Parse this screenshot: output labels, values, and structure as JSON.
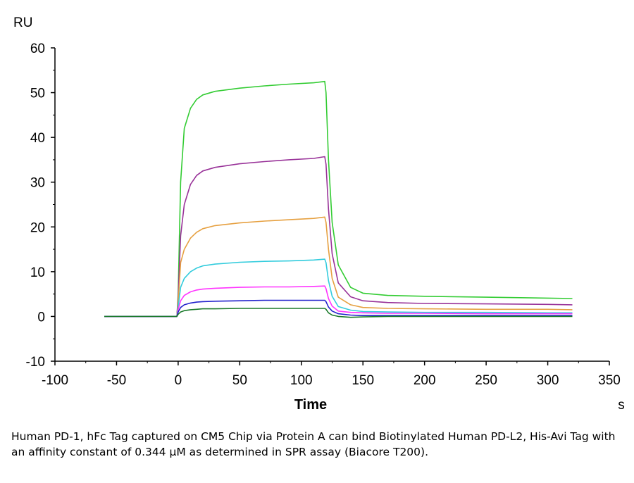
{
  "chart_data": {
    "type": "line",
    "ylabel_unit": "RU",
    "xlabel": "Time",
    "xlabel_unit": "s",
    "xlim": [
      -100,
      350
    ],
    "ylim": [
      -10,
      60
    ],
    "xticks": [
      -100,
      -50,
      0,
      50,
      100,
      150,
      200,
      250,
      300,
      350
    ],
    "yticks": [
      -10,
      0,
      10,
      20,
      30,
      40,
      50,
      60
    ],
    "grid": false,
    "legend": "none",
    "series": [
      {
        "color": "#33cc33",
        "x": [
          -60,
          -20,
          -1,
          0,
          2,
          5,
          10,
          15,
          20,
          30,
          50,
          70,
          90,
          110,
          119,
          120,
          122,
          125,
          130,
          140,
          150,
          170,
          200,
          250,
          300,
          320
        ],
        "y": [
          0,
          0,
          0,
          5,
          30,
          42,
          46.5,
          48.5,
          49.5,
          50.3,
          51,
          51.5,
          51.9,
          52.2,
          52.5,
          50,
          35,
          21,
          11.5,
          6.5,
          5.2,
          4.7,
          4.5,
          4.3,
          4.1,
          4
        ]
      },
      {
        "color": "#993399",
        "x": [
          -60,
          -1,
          0,
          2,
          5,
          10,
          15,
          20,
          30,
          50,
          70,
          90,
          110,
          119,
          120,
          122,
          125,
          130,
          140,
          150,
          170,
          200,
          250,
          300,
          320
        ],
        "y": [
          0,
          0,
          4,
          18,
          25,
          29.5,
          31.5,
          32.5,
          33.3,
          34.1,
          34.6,
          35,
          35.3,
          35.7,
          34,
          24,
          14,
          7.5,
          4.4,
          3.5,
          3.1,
          2.9,
          2.8,
          2.7,
          2.6
        ]
      },
      {
        "color": "#e6a040",
        "x": [
          -60,
          -1,
          0,
          2,
          5,
          10,
          15,
          20,
          30,
          50,
          70,
          90,
          110,
          119,
          120,
          122,
          125,
          130,
          140,
          150,
          170,
          200,
          250,
          300,
          320
        ],
        "y": [
          0,
          0,
          3,
          12,
          15,
          17.5,
          18.8,
          19.6,
          20.3,
          20.9,
          21.3,
          21.6,
          21.9,
          22.2,
          21,
          15,
          8.5,
          4.3,
          2.6,
          2,
          1.8,
          1.7,
          1.6,
          1.6,
          1.5
        ]
      },
      {
        "color": "#33ccdd",
        "x": [
          -60,
          -1,
          0,
          2,
          5,
          10,
          15,
          20,
          30,
          50,
          70,
          90,
          110,
          119,
          120,
          122,
          125,
          130,
          140,
          150,
          170,
          200,
          250,
          300,
          320
        ],
        "y": [
          0,
          0,
          2,
          6.5,
          8.5,
          10,
          10.8,
          11.3,
          11.7,
          12.1,
          12.3,
          12.4,
          12.6,
          12.8,
          12,
          8,
          4.5,
          2.2,
          1.4,
          1.1,
          1,
          0.9,
          0.9,
          0.8,
          0.8
        ]
      },
      {
        "color": "#ff33ff",
        "x": [
          -60,
          -1,
          0,
          2,
          5,
          10,
          15,
          20,
          30,
          50,
          70,
          90,
          110,
          119,
          120,
          122,
          125,
          130,
          140,
          150,
          170,
          200,
          250,
          300,
          320
        ],
        "y": [
          0,
          0,
          1.5,
          3.5,
          4.7,
          5.5,
          5.9,
          6.1,
          6.3,
          6.5,
          6.6,
          6.6,
          6.7,
          6.8,
          6.2,
          4,
          2.3,
          1.2,
          0.9,
          0.8,
          0.7,
          0.7,
          0.6,
          0.6,
          0.6
        ]
      },
      {
        "color": "#2222cc",
        "x": [
          -60,
          -1,
          0,
          2,
          5,
          10,
          15,
          20,
          30,
          50,
          70,
          90,
          110,
          119,
          120,
          122,
          125,
          130,
          140,
          150,
          170,
          200,
          250,
          300,
          320
        ],
        "y": [
          0,
          0,
          1,
          2,
          2.6,
          3,
          3.2,
          3.3,
          3.4,
          3.5,
          3.6,
          3.6,
          3.6,
          3.6,
          3.3,
          2.1,
          1.2,
          0.6,
          0.3,
          0.2,
          0.2,
          0.2,
          0.2,
          0.2,
          0.2
        ]
      },
      {
        "color": "#1a7a2a",
        "x": [
          -60,
          -1,
          0,
          2,
          5,
          10,
          15,
          20,
          30,
          50,
          70,
          90,
          110,
          119,
          120,
          122,
          125,
          130,
          140,
          150,
          170,
          200,
          250,
          300,
          320
        ],
        "y": [
          0,
          0,
          0.5,
          1,
          1.3,
          1.5,
          1.6,
          1.7,
          1.7,
          1.8,
          1.8,
          1.8,
          1.8,
          1.8,
          1.6,
          0.8,
          0.3,
          0,
          -0.2,
          -0.1,
          0,
          0,
          0,
          0,
          0
        ]
      }
    ]
  },
  "caption": "Human PD-1, hFc Tag captured on CM5 Chip via Protein A can bind Biotinylated Human PD-L2, His-Avi Tag with an affinity constant of 0.344 μM as determined in SPR assay (Biacore T200)."
}
